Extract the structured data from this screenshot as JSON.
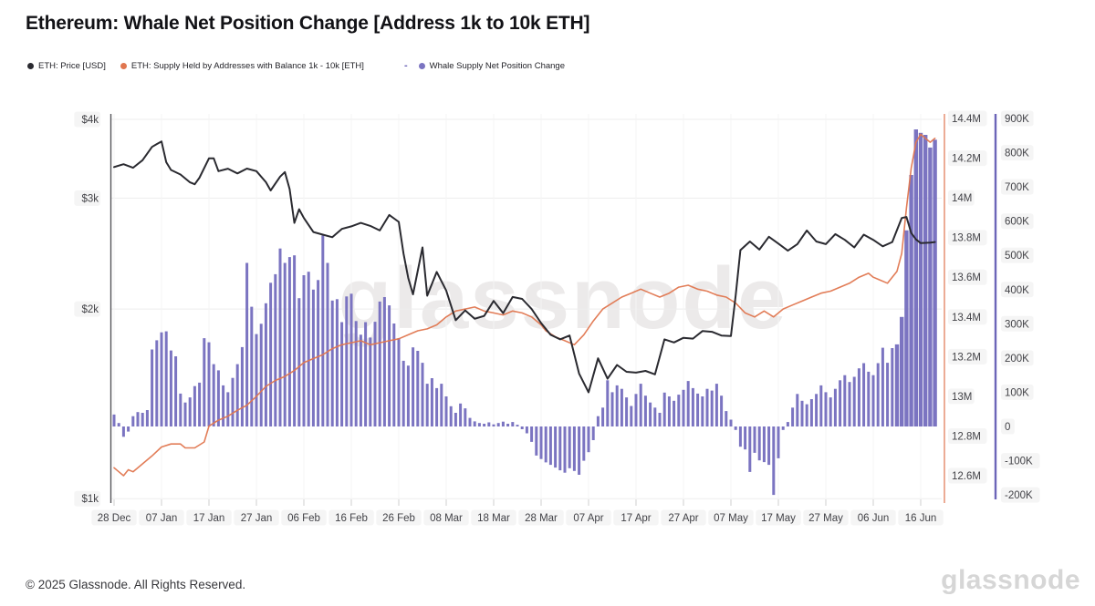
{
  "title": "Ethereum: Whale Net Position Change [Address 1k to 10k ETH]",
  "watermark": "glassnode",
  "legend": [
    {
      "label": "ETH: Price [USD]",
      "color": "#2a2a30",
      "marker": "dot"
    },
    {
      "label": "ETH: Supply Held by Addresses with Balance 1k - 10k [ETH]",
      "color": "#e0764f",
      "marker": "dot"
    },
    {
      "label": "Whale Supply Net Position Change",
      "color": "#7b74c1",
      "marker": "dash-dot",
      "marker_prefix": "-"
    }
  ],
  "footer": {
    "copyright": "© 2025 Glassnode. All Rights Reserved.",
    "brand": "glassnode"
  },
  "chart_data": {
    "type": "mixed",
    "title": "Ethereum: Whale Net Position Change [Address 1k to 10k ETH]",
    "x_start_date": "28 Dec",
    "x_end_date": "19 Jun",
    "grid": true,
    "legend_position": "top-left",
    "axes": {
      "x": {
        "tick_interval_days": 10,
        "ticks": [
          {
            "label": "28 Dec",
            "day": 0
          },
          {
            "label": "07 Jan",
            "day": 10
          },
          {
            "label": "17 Jan",
            "day": 20
          },
          {
            "label": "27 Jan",
            "day": 30
          },
          {
            "label": "06 Feb",
            "day": 40
          },
          {
            "label": "16 Feb",
            "day": 50
          },
          {
            "label": "26 Feb",
            "day": 60
          },
          {
            "label": "08 Mar",
            "day": 70
          },
          {
            "label": "18 Mar",
            "day": 80
          },
          {
            "label": "28 Mar",
            "day": 90
          },
          {
            "label": "07 Apr",
            "day": 100
          },
          {
            "label": "17 Apr",
            "day": 110
          },
          {
            "label": "27 Apr",
            "day": 120
          },
          {
            "label": "07 May",
            "day": 130
          },
          {
            "label": "17 May",
            "day": 140
          },
          {
            "label": "27 May",
            "day": 150
          },
          {
            "label": "06 Jun",
            "day": 160
          },
          {
            "label": "16 Jun",
            "day": 170
          }
        ]
      },
      "price_usd": {
        "side": "left",
        "scale": "log",
        "range": [
          1000,
          4000
        ],
        "ticks": [
          {
            "label": "$1k",
            "value": 1000
          },
          {
            "label": "$2k",
            "value": 2000
          },
          {
            "label": "$3k",
            "value": 3000
          },
          {
            "label": "$4k",
            "value": 4000
          }
        ]
      },
      "supply_m": {
        "side": "right-inner",
        "scale": "linear",
        "range": [
          12.5,
          14.4
        ],
        "unit": "M ETH",
        "ticks": [
          {
            "label": "12.6M",
            "value": 12.6
          },
          {
            "label": "12.8M",
            "value": 12.8
          },
          {
            "label": "13M",
            "value": 13.0
          },
          {
            "label": "13.2M",
            "value": 13.2
          },
          {
            "label": "13.4M",
            "value": 13.4
          },
          {
            "label": "13.6M",
            "value": 13.6
          },
          {
            "label": "13.8M",
            "value": 13.8
          },
          {
            "label": "14M",
            "value": 14.0
          },
          {
            "label": "14.2M",
            "value": 14.2
          },
          {
            "label": "14.4M",
            "value": 14.4
          }
        ]
      },
      "netpos_k": {
        "side": "right-outer",
        "scale": "linear",
        "range": [
          -200,
          900
        ],
        "unit": "K ETH",
        "ticks": [
          {
            "label": "-200K",
            "value": -200
          },
          {
            "label": "-100K",
            "value": -100
          },
          {
            "label": "0",
            "value": 0
          },
          {
            "label": "100K",
            "value": 100
          },
          {
            "label": "200K",
            "value": 200
          },
          {
            "label": "300K",
            "value": 300
          },
          {
            "label": "400K",
            "value": 400
          },
          {
            "label": "500K",
            "value": 500
          },
          {
            "label": "600K",
            "value": 600
          },
          {
            "label": "700K",
            "value": 700
          },
          {
            "label": "800K",
            "value": 800
          },
          {
            "label": "900K",
            "value": 900
          }
        ]
      }
    },
    "series": [
      {
        "name": "ETH: Price [USD]",
        "type": "line",
        "axis": "price_usd",
        "color": "#2a2a30",
        "points_day_usd": [
          [
            0,
            3360
          ],
          [
            2,
            3395
          ],
          [
            4,
            3352
          ],
          [
            6,
            3445
          ],
          [
            8,
            3617
          ],
          [
            9,
            3655
          ],
          [
            10,
            3690
          ],
          [
            11,
            3420
          ],
          [
            12,
            3325
          ],
          [
            14,
            3270
          ],
          [
            16,
            3178
          ],
          [
            17,
            3155
          ],
          [
            18,
            3232
          ],
          [
            20,
            3468
          ],
          [
            21,
            3470
          ],
          [
            22,
            3310
          ],
          [
            24,
            3340
          ],
          [
            26,
            3283
          ],
          [
            28,
            3342
          ],
          [
            30,
            3311
          ],
          [
            32,
            3180
          ],
          [
            33,
            3085
          ],
          [
            35,
            3245
          ],
          [
            36,
            3300
          ],
          [
            37,
            3100
          ],
          [
            38,
            2740
          ],
          [
            39,
            2880
          ],
          [
            40,
            2790
          ],
          [
            42,
            2650
          ],
          [
            44,
            2625
          ],
          [
            46,
            2600
          ],
          [
            48,
            2680
          ],
          [
            50,
            2705
          ],
          [
            52,
            2740
          ],
          [
            54,
            2710
          ],
          [
            56,
            2665
          ],
          [
            58,
            2820
          ],
          [
            60,
            2750
          ],
          [
            61,
            2450
          ],
          [
            62,
            2240
          ],
          [
            63,
            2110
          ],
          [
            65,
            2505
          ],
          [
            66,
            2100
          ],
          [
            68,
            2290
          ],
          [
            70,
            2140
          ],
          [
            72,
            1920
          ],
          [
            74,
            1990
          ],
          [
            76,
            1930
          ],
          [
            78,
            1950
          ],
          [
            80,
            2060
          ],
          [
            82,
            1970
          ],
          [
            84,
            2090
          ],
          [
            86,
            2075
          ],
          [
            88,
            2000
          ],
          [
            90,
            1900
          ],
          [
            92,
            1820
          ],
          [
            94,
            1790
          ],
          [
            96,
            1815
          ],
          [
            98,
            1580
          ],
          [
            100,
            1475
          ],
          [
            102,
            1670
          ],
          [
            104,
            1550
          ],
          [
            106,
            1630
          ],
          [
            108,
            1590
          ],
          [
            110,
            1585
          ],
          [
            112,
            1595
          ],
          [
            114,
            1575
          ],
          [
            116,
            1790
          ],
          [
            118,
            1770
          ],
          [
            120,
            1800
          ],
          [
            122,
            1795
          ],
          [
            124,
            1845
          ],
          [
            126,
            1840
          ],
          [
            128,
            1815
          ],
          [
            130,
            1812
          ],
          [
            131,
            2100
          ],
          [
            132,
            2480
          ],
          [
            134,
            2560
          ],
          [
            136,
            2485
          ],
          [
            138,
            2605
          ],
          [
            140,
            2540
          ],
          [
            142,
            2475
          ],
          [
            144,
            2535
          ],
          [
            146,
            2665
          ],
          [
            148,
            2560
          ],
          [
            150,
            2535
          ],
          [
            152,
            2630
          ],
          [
            154,
            2575
          ],
          [
            156,
            2505
          ],
          [
            158,
            2625
          ],
          [
            160,
            2575
          ],
          [
            162,
            2515
          ],
          [
            164,
            2555
          ],
          [
            166,
            2790
          ],
          [
            167,
            2800
          ],
          [
            168,
            2640
          ],
          [
            169,
            2580
          ],
          [
            170,
            2545
          ],
          [
            172,
            2550
          ],
          [
            173,
            2555
          ]
        ]
      },
      {
        "name": "ETH: Supply Held by Addresses with Balance 1k - 10k [ETH]",
        "type": "line",
        "axis": "supply_m",
        "color": "#e0764f",
        "points_day_m": [
          [
            0,
            12.64
          ],
          [
            1,
            12.62
          ],
          [
            2,
            12.6
          ],
          [
            3,
            12.63
          ],
          [
            4,
            12.62
          ],
          [
            6,
            12.66
          ],
          [
            8,
            12.7
          ],
          [
            10,
            12.745
          ],
          [
            12,
            12.76
          ],
          [
            14,
            12.76
          ],
          [
            15,
            12.74
          ],
          [
            17,
            12.74
          ],
          [
            19,
            12.77
          ],
          [
            20,
            12.85
          ],
          [
            22,
            12.88
          ],
          [
            24,
            12.9
          ],
          [
            26,
            12.93
          ],
          [
            28,
            12.955
          ],
          [
            30,
            13.0
          ],
          [
            32,
            13.05
          ],
          [
            34,
            13.08
          ],
          [
            36,
            13.1
          ],
          [
            38,
            13.13
          ],
          [
            40,
            13.17
          ],
          [
            42,
            13.19
          ],
          [
            44,
            13.21
          ],
          [
            46,
            13.24
          ],
          [
            48,
            13.26
          ],
          [
            50,
            13.27
          ],
          [
            52,
            13.28
          ],
          [
            54,
            13.26
          ],
          [
            56,
            13.27
          ],
          [
            58,
            13.28
          ],
          [
            60,
            13.29
          ],
          [
            62,
            13.31
          ],
          [
            64,
            13.33
          ],
          [
            66,
            13.34
          ],
          [
            68,
            13.36
          ],
          [
            70,
            13.4
          ],
          [
            72,
            13.43
          ],
          [
            74,
            13.44
          ],
          [
            76,
            13.45
          ],
          [
            78,
            13.43
          ],
          [
            80,
            13.42
          ],
          [
            82,
            13.41
          ],
          [
            84,
            13.43
          ],
          [
            86,
            13.42
          ],
          [
            88,
            13.4
          ],
          [
            90,
            13.36
          ],
          [
            91,
            13.33
          ],
          [
            93,
            13.3
          ],
          [
            95,
            13.28
          ],
          [
            97,
            13.26
          ],
          [
            99,
            13.31
          ],
          [
            101,
            13.38
          ],
          [
            103,
            13.44
          ],
          [
            105,
            13.47
          ],
          [
            107,
            13.5
          ],
          [
            109,
            13.52
          ],
          [
            111,
            13.54
          ],
          [
            113,
            13.52
          ],
          [
            115,
            13.5
          ],
          [
            117,
            13.52
          ],
          [
            119,
            13.55
          ],
          [
            121,
            13.56
          ],
          [
            123,
            13.54
          ],
          [
            125,
            13.53
          ],
          [
            127,
            13.51
          ],
          [
            129,
            13.5
          ],
          [
            131,
            13.47
          ],
          [
            133,
            13.42
          ],
          [
            135,
            13.4
          ],
          [
            137,
            13.43
          ],
          [
            139,
            13.4
          ],
          [
            141,
            13.44
          ],
          [
            143,
            13.46
          ],
          [
            145,
            13.48
          ],
          [
            147,
            13.5
          ],
          [
            149,
            13.52
          ],
          [
            151,
            13.53
          ],
          [
            153,
            13.55
          ],
          [
            155,
            13.57
          ],
          [
            157,
            13.6
          ],
          [
            159,
            13.62
          ],
          [
            160,
            13.6
          ],
          [
            161,
            13.59
          ],
          [
            163,
            13.57
          ],
          [
            164,
            13.6
          ],
          [
            165,
            13.63
          ],
          [
            166,
            13.72
          ],
          [
            167,
            13.95
          ],
          [
            168,
            14.15
          ],
          [
            169,
            14.28
          ],
          [
            170,
            14.32
          ],
          [
            171,
            14.3
          ],
          [
            172,
            14.28
          ],
          [
            173,
            14.3
          ]
        ]
      },
      {
        "name": "Whale Supply Net Position Change",
        "type": "bar",
        "axis": "netpos_k",
        "color": "#7b74c1",
        "start_day_date": "28 Dec",
        "daily_values_k": [
          35,
          10,
          -30,
          -15,
          30,
          42,
          40,
          48,
          225,
          252,
          275,
          278,
          222,
          205,
          96,
          70,
          85,
          118,
          128,
          258,
          246,
          182,
          164,
          120,
          100,
          142,
          182,
          232,
          478,
          350,
          270,
          300,
          360,
          420,
          445,
          520,
          478,
          495,
          500,
          375,
          442,
          452,
          400,
          428,
          558,
          478,
          368,
          372,
          305,
          380,
          388,
          308,
          268,
          305,
          260,
          306,
          365,
          378,
          354,
          301,
          258,
          192,
          178,
          231,
          221,
          186,
          125,
          141,
          112,
          125,
          88,
          59,
          40,
          67,
          53,
          25,
          15,
          10,
          8,
          12,
          6,
          10,
          14,
          8,
          13,
          5,
          -8,
          -20,
          -45,
          -85,
          -95,
          -105,
          -112,
          -120,
          -128,
          -135,
          -122,
          -130,
          -141,
          -100,
          -75,
          -40,
          30,
          55,
          135,
          100,
          120,
          110,
          85,
          60,
          95,
          125,
          90,
          70,
          55,
          40,
          99,
          88,
          75,
          93,
          107,
          133,
          112,
          96,
          88,
          110,
          105,
          125,
          90,
          45,
          20,
          -10,
          -59,
          -67,
          -133,
          -77,
          -99,
          -104,
          -112,
          -200,
          -93,
          -10,
          13,
          55,
          95,
          75,
          65,
          80,
          95,
          120,
          100,
          85,
          110,
          135,
          150,
          130,
          145,
          170,
          185,
          160,
          150,
          185,
          230,
          186,
          229,
          240,
          320,
          573,
          735,
          868,
          858,
          852,
          815,
          838
        ]
      }
    ]
  }
}
